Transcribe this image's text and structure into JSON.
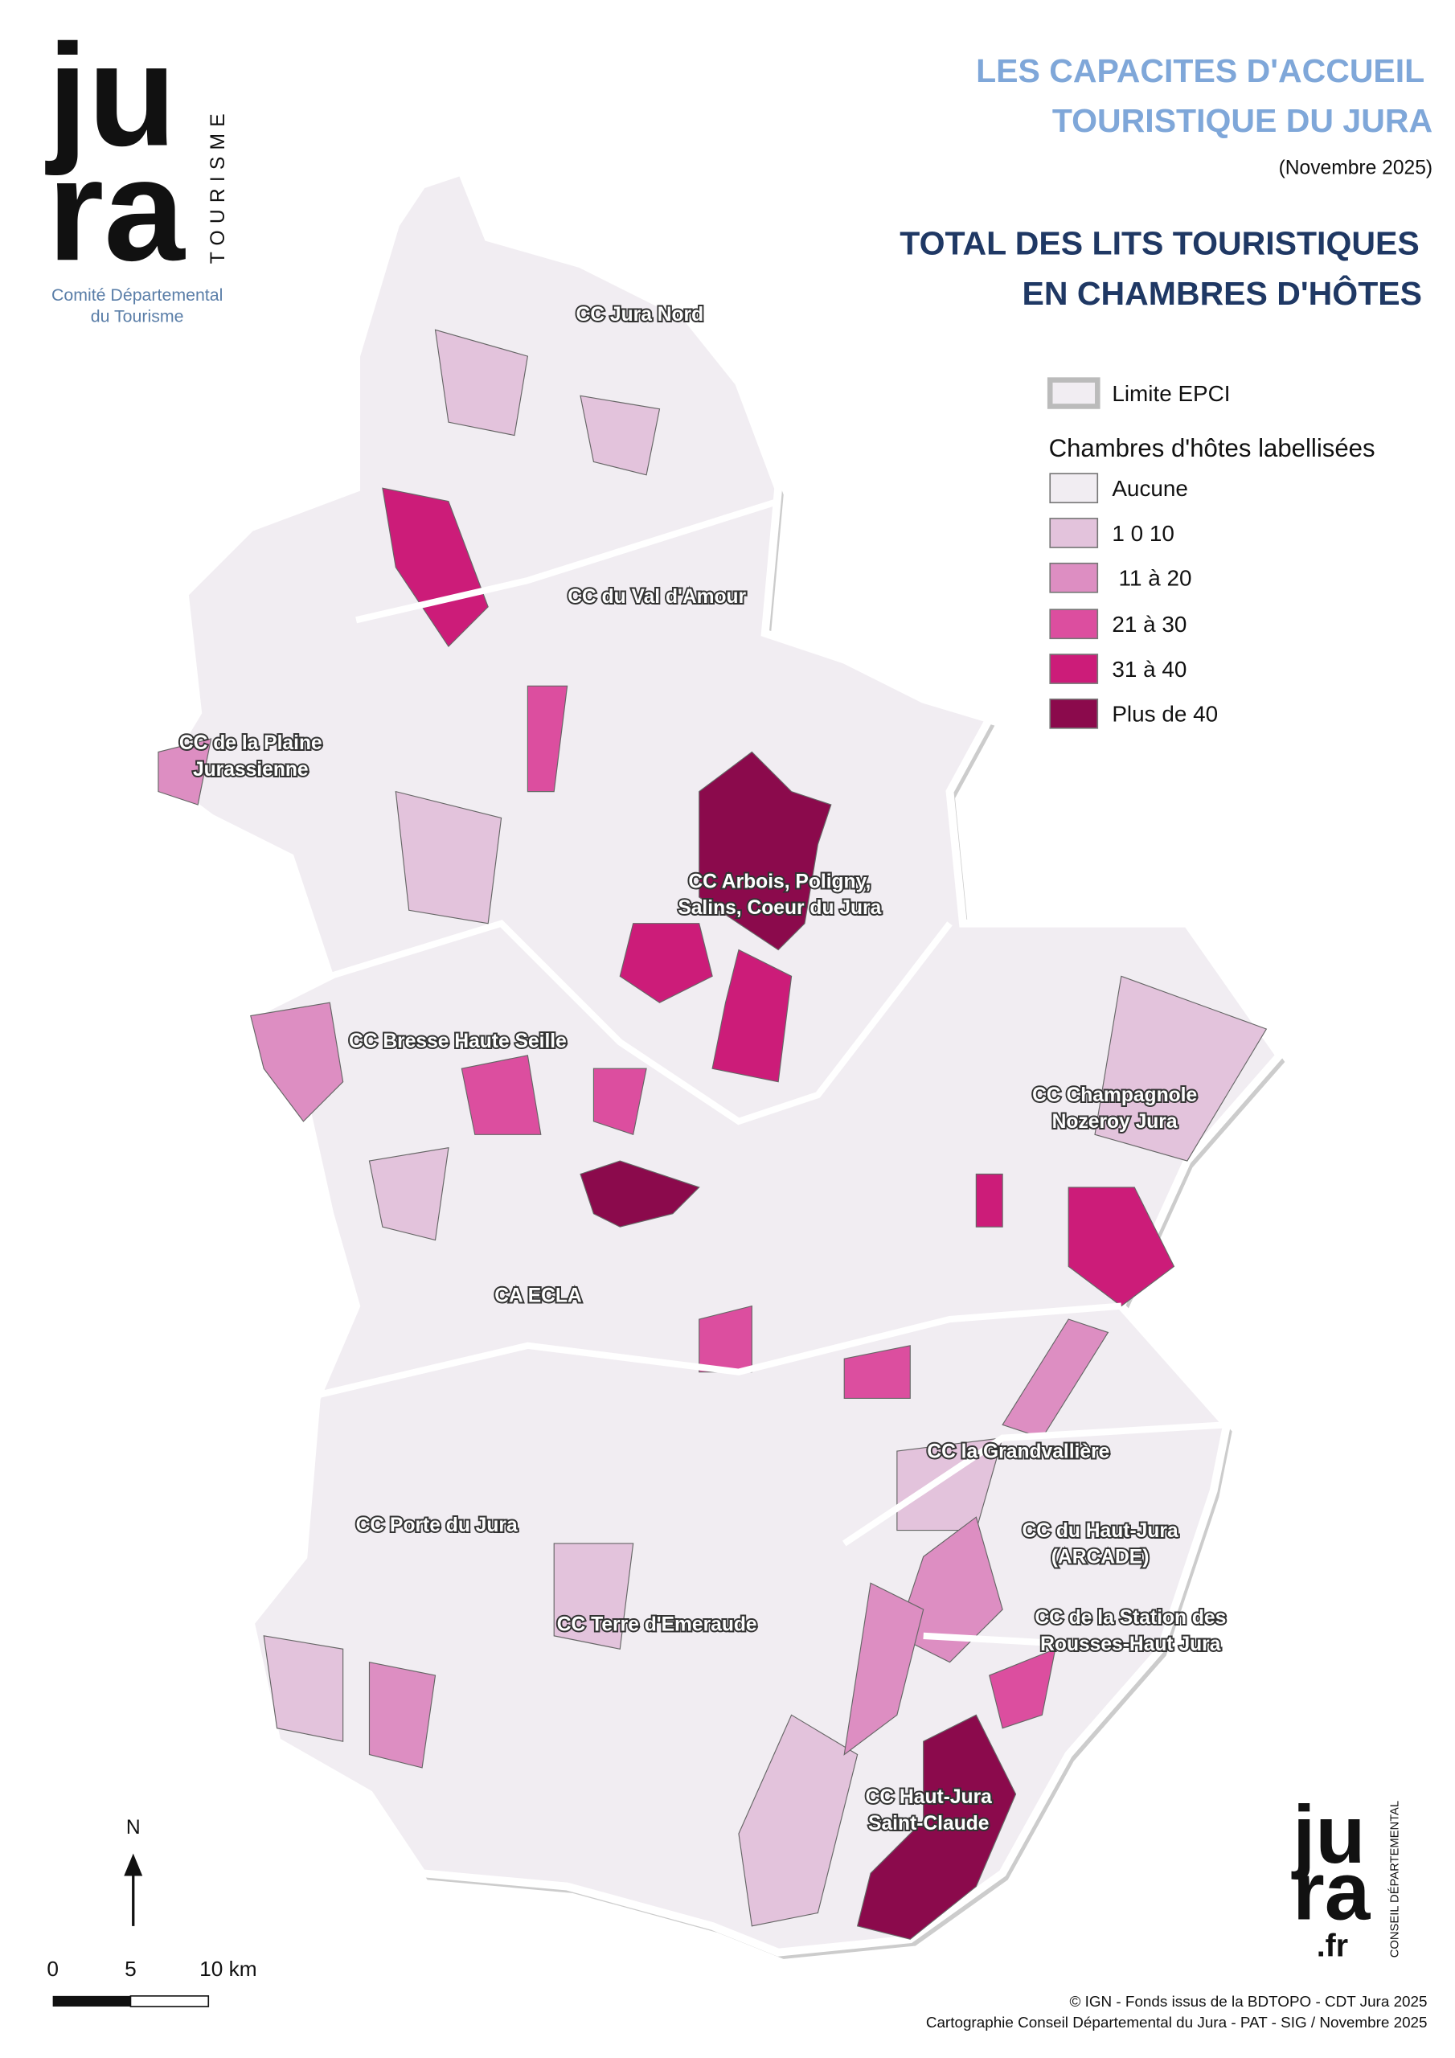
{
  "logo_top": {
    "line1": "ju",
    "line2": "ra",
    "vertical": "TOURISME",
    "caption1": "Comité Départemental",
    "caption2": "du Tourisme"
  },
  "header": {
    "title1": "LES CAPACITES D'ACCUEIL",
    "title2": "TOURISTIQUE DU JURA",
    "date": "(Novembre 2025)",
    "subtitle1": "TOTAL DES LITS TOURISTIQUES",
    "subtitle2": "EN CHAMBRES D'HÔTES"
  },
  "legend": {
    "boundary": "Limite EPCI",
    "title": "Chambres d'hôtes labellisées",
    "classes": [
      {
        "label": "Aucune",
        "color": "#f1edf2"
      },
      {
        "label": "1 0 10",
        "color": "#e3c3dc"
      },
      {
        "label": "11 à 20",
        "color": "#dd8ec2"
      },
      {
        "label": "21 à 30",
        "color": "#dc4e9f"
      },
      {
        "label": "31 à 40",
        "color": "#cc1c79"
      },
      {
        "label": "Plus de 40",
        "color": "#8b0a4c"
      }
    ]
  },
  "epci_labels": [
    [
      "CC Jura Nord"
    ],
    [
      "CC du Val d'Amour"
    ],
    [
      "CC de la Plaine",
      "Jurassienne"
    ],
    [
      "CC Arbois, Poligny,",
      "Salins, Coeur du Jura"
    ],
    [
      "CC Bresse Haute Seille"
    ],
    [
      "CC Champagnole",
      "Nozeroy Jura"
    ],
    [
      "CA ECLA"
    ],
    [
      "CC la Grandvallière"
    ],
    [
      "CC Porte du Jura"
    ],
    [
      "CC du Haut-Jura",
      "(ARCADE)"
    ],
    [
      "CC de la Station des",
      "Rousses-Haut Jura"
    ],
    [
      "CC Terre d'Emeraude"
    ],
    [
      "CC Haut-Jura",
      "Saint-Claude"
    ]
  ],
  "scale": {
    "north": "N",
    "ticks": [
      "0",
      "5",
      "10 km"
    ]
  },
  "credits": {
    "line1": "© IGN - Fonds issus de la BDTOPO  - CDT Jura 2025",
    "line2": "Cartographie Conseil Départemental du Jura - PAT - SIG / Novembre 2025"
  },
  "logo_bottom": {
    "line1": "ju",
    "line2": "ra",
    "line3": ".fr",
    "vertical": "CONSEIL DÉPARTEMENTAL"
  }
}
